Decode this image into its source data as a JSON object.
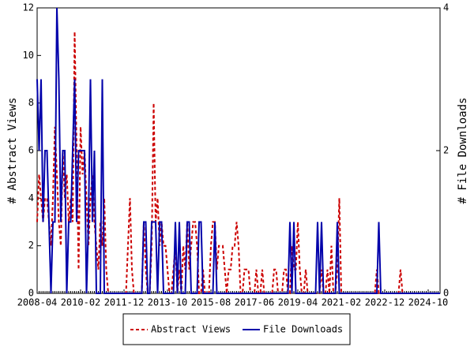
{
  "chart_data": {
    "type": "line",
    "y_label": "# Abstract Views",
    "y2_label": "# File Downloads",
    "categories": [
      "2008-04",
      null,
      null,
      null,
      null,
      null,
      null,
      null,
      null,
      null,
      null,
      null,
      null,
      null,
      null,
      null,
      null,
      null,
      null,
      null,
      null,
      null,
      "2010-02",
      null,
      null,
      null,
      null,
      null,
      null,
      null,
      null,
      null,
      null,
      null,
      null,
      null,
      null,
      null,
      null,
      null,
      null,
      null,
      null,
      null,
      "2011-12",
      null,
      null,
      null,
      null,
      null,
      null,
      null,
      null,
      null,
      null,
      null,
      null,
      null,
      null,
      null,
      null,
      null,
      null,
      null,
      null,
      null,
      "2013-10",
      null,
      null,
      null,
      null,
      null,
      null,
      null,
      null,
      null,
      null,
      null,
      null,
      null,
      null,
      null,
      null,
      null,
      null,
      null,
      null,
      null,
      "2015-08",
      null,
      null,
      null,
      null,
      null,
      null,
      null,
      null,
      null,
      null,
      null,
      null,
      null,
      null,
      null,
      null,
      null,
      null,
      null,
      null,
      null,
      "2017-06",
      null,
      null,
      null,
      null,
      null,
      null,
      null,
      null,
      null,
      null,
      null,
      null,
      null,
      null,
      null,
      null,
      null,
      null,
      null,
      null,
      null,
      "2019-04",
      null,
      null,
      null,
      null,
      null,
      null,
      null,
      null,
      null,
      null,
      null,
      null,
      null,
      null,
      null,
      null,
      null,
      null,
      null,
      null,
      null,
      "2021-02",
      null,
      null,
      null,
      null,
      null,
      null,
      null,
      null,
      null,
      null,
      null,
      null,
      null,
      null,
      null,
      null,
      null,
      null,
      null,
      null,
      null,
      "2022-12",
      null,
      null,
      null,
      null,
      null,
      null,
      null,
      null,
      null,
      null,
      null,
      null,
      null,
      null,
      null,
      null,
      null,
      null,
      null,
      null,
      null,
      "2024-10",
      null,
      null,
      null,
      null,
      null,
      null
    ],
    "series": [
      {
        "name": "Abstract Views",
        "color": "#cc0000",
        "dashed": true,
        "axis": "y",
        "values": [
          3,
          5,
          4,
          3,
          4,
          4,
          3,
          2,
          4,
          7,
          5,
          3,
          2,
          6,
          4,
          5,
          3,
          4,
          3,
          11,
          6,
          1,
          7,
          5,
          6,
          4,
          2,
          4,
          5,
          3,
          2,
          1,
          3,
          2,
          4,
          1,
          0,
          0,
          0,
          0,
          0,
          0,
          0,
          0,
          0,
          0,
          2,
          4,
          1,
          0,
          0,
          0,
          0,
          0,
          3,
          1,
          0,
          0,
          2,
          8,
          3,
          4,
          2,
          3,
          2,
          2,
          1,
          0,
          0,
          1,
          2,
          0,
          1,
          0,
          2,
          1,
          3,
          1,
          2,
          3,
          3,
          2,
          0,
          0,
          1,
          0,
          0,
          0,
          2,
          3,
          3,
          1,
          2,
          2,
          2,
          1,
          0,
          1,
          1,
          2,
          2,
          3,
          2,
          0,
          0,
          1,
          1,
          1,
          0,
          0,
          0,
          1,
          0,
          0,
          1,
          0,
          0,
          0,
          0,
          0,
          1,
          1,
          0,
          0,
          0,
          1,
          1,
          0,
          0,
          2,
          1,
          1,
          3,
          1,
          0,
          0,
          1,
          0,
          0,
          0,
          0,
          0,
          0,
          0,
          1,
          0,
          0,
          1,
          0,
          2,
          0,
          0,
          1,
          4,
          0,
          0,
          0,
          0,
          0,
          0,
          0,
          0,
          0,
          0,
          0,
          0,
          0,
          0,
          0,
          0,
          0,
          0,
          1,
          0,
          0,
          0,
          0,
          0,
          0,
          0,
          0,
          0,
          0,
          0,
          1,
          0,
          0,
          0,
          0,
          0,
          0,
          0,
          0,
          0,
          0,
          0,
          0,
          0,
          0,
          0,
          0,
          0,
          0,
          0,
          0
        ]
      },
      {
        "name": "File Downloads",
        "color": "#0000aa",
        "dashed": false,
        "axis": "y2",
        "values": [
          3,
          2,
          3,
          1,
          2,
          2,
          1,
          0,
          1,
          1,
          4,
          3,
          1,
          2,
          2,
          0,
          1,
          1,
          2,
          3,
          1,
          2,
          2,
          2,
          2,
          0,
          1,
          3,
          1,
          2,
          0,
          0,
          0,
          3,
          0,
          0,
          0,
          0,
          0,
          0,
          0,
          0,
          0,
          0,
          0,
          0,
          0,
          0,
          0,
          0,
          0,
          0,
          0,
          0,
          1,
          1,
          0,
          0,
          1,
          1,
          1,
          0,
          1,
          1,
          0,
          0,
          0,
          0,
          0,
          0,
          1,
          0,
          1,
          0,
          0,
          0,
          1,
          1,
          0,
          0,
          0,
          0,
          1,
          1,
          0,
          0,
          0,
          0,
          0,
          0,
          1,
          0,
          0,
          0,
          0,
          0,
          0,
          0,
          0,
          0,
          0,
          0,
          0,
          0,
          0,
          0,
          0,
          0,
          0,
          0,
          0,
          0,
          0,
          0,
          0,
          0,
          0,
          0,
          0,
          0,
          0,
          0,
          0,
          0,
          0,
          0,
          0,
          0,
          1,
          0,
          1,
          0,
          0,
          0,
          0,
          0,
          0,
          0,
          0,
          0,
          0,
          0,
          1,
          0,
          1,
          0,
          0,
          0,
          0,
          0,
          0,
          0,
          1,
          0,
          0,
          0,
          0,
          0,
          0,
          0,
          0,
          0,
          0,
          0,
          0,
          0,
          0,
          0,
          0,
          0,
          0,
          0,
          0,
          1,
          0,
          0,
          0,
          0,
          0,
          0,
          0,
          0,
          0,
          0,
          0,
          0,
          0,
          0,
          0,
          0,
          0,
          0,
          0,
          0,
          0,
          0,
          0,
          0,
          0,
          0,
          0,
          0,
          0,
          0,
          0
        ]
      }
    ],
    "ylim": [
      0,
      12
    ],
    "yticks": [
      0,
      2,
      4,
      6,
      8,
      10,
      12
    ],
    "y2lim": [
      0,
      4
    ],
    "y2ticks": [
      0,
      2,
      4
    ]
  }
}
